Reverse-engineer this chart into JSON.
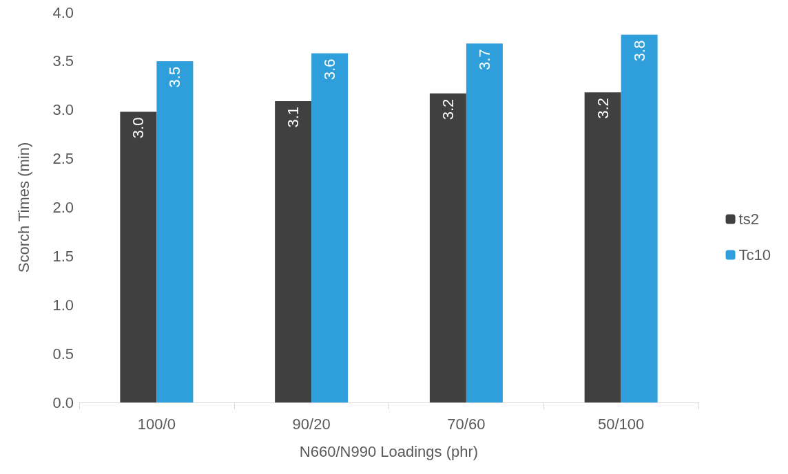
{
  "chart_data": {
    "type": "bar",
    "xlabel": "N660/N990 Loadings (phr)",
    "ylabel": "Scorch Times (min)",
    "categories": [
      "100/0",
      "90/20",
      "70/60",
      "50/100"
    ],
    "series": [
      {
        "name": "ts2",
        "color": "#404040",
        "values": [
          2.98,
          3.09,
          3.17,
          3.18
        ],
        "value_labels": [
          "3.0",
          "3.1",
          "3.2",
          "3.2"
        ]
      },
      {
        "name": "Tc10",
        "color": "#2e9fdb",
        "values": [
          3.5,
          3.58,
          3.68,
          3.77
        ],
        "value_labels": [
          "3.5",
          "3.6",
          "3.7",
          "3.8"
        ]
      }
    ],
    "ylim": [
      0,
      4
    ],
    "yticks": [
      {
        "value": 0,
        "label": "0.0"
      },
      0.5,
      {
        "value": 1,
        "label": "1.0"
      },
      1.5,
      {
        "value": 2,
        "label": "2.0"
      },
      2.5,
      {
        "value": 3,
        "label": "3.0"
      },
      3.5,
      {
        "value": 4,
        "label": "4.0"
      }
    ],
    "grid": false,
    "legend": "right"
  }
}
